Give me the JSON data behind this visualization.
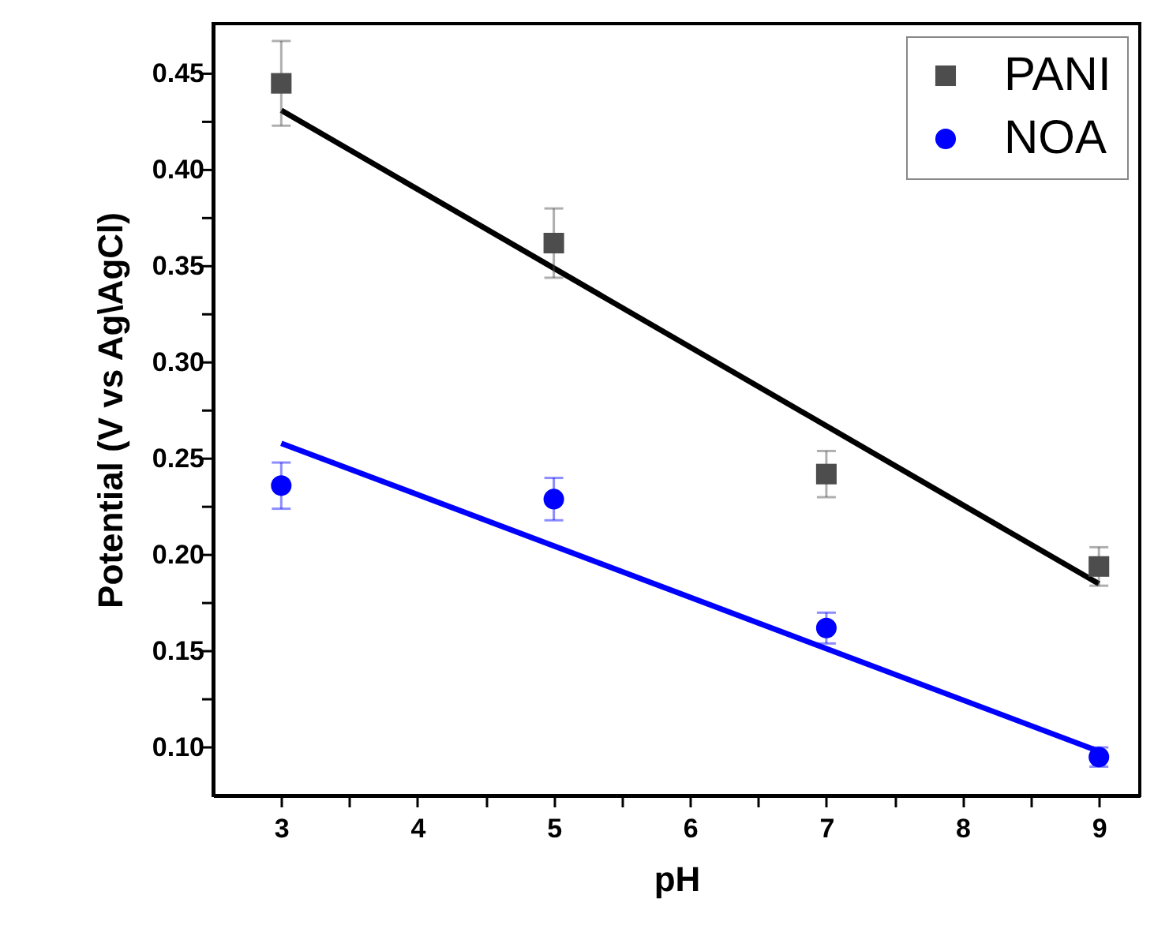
{
  "chart_data": {
    "type": "scatter",
    "xlabel": "pH",
    "ylabel": "Potential (V vs Ag\\AgCl)",
    "xlim": [
      2.5,
      9.3
    ],
    "ylim": [
      0.075,
      0.476
    ],
    "xticks": [
      3,
      {
        "value": 3.5,
        "label": null
      },
      4,
      {
        "value": 4.5,
        "label": null
      },
      5,
      {
        "value": 5.5,
        "label": null
      },
      6,
      {
        "value": 6.5,
        "label": null
      },
      7,
      {
        "value": 7.5,
        "label": null
      },
      8,
      {
        "value": 8.5,
        "label": null
      },
      9
    ],
    "yticks": [
      {
        "value": 0.1,
        "label": "0.10"
      },
      {
        "value": 0.125,
        "label": null
      },
      {
        "value": 0.15,
        "label": "0.15"
      },
      {
        "value": 0.175,
        "label": null
      },
      {
        "value": 0.2,
        "label": "0.20"
      },
      {
        "value": 0.225,
        "label": null
      },
      {
        "value": 0.25,
        "label": "0.25"
      },
      {
        "value": 0.275,
        "label": null
      },
      {
        "value": 0.3,
        "label": "0.30"
      },
      {
        "value": 0.325,
        "label": null
      },
      {
        "value": 0.35,
        "label": "0.35"
      },
      {
        "value": 0.375,
        "label": null
      },
      {
        "value": 0.4,
        "label": "0.40"
      },
      {
        "value": 0.425,
        "label": null
      },
      {
        "value": 0.45,
        "label": "0.45"
      }
    ],
    "grid": false,
    "legend": "top right",
    "series": [
      {
        "type": "scatter",
        "name": "PANI",
        "color": "#4d4d4d",
        "marker": "square",
        "x": [
          3,
          5,
          7,
          9
        ],
        "values": [
          0.445,
          0.362,
          0.242,
          0.194
        ],
        "errors": [
          0.022,
          0.018,
          0.012,
          0.01
        ]
      },
      {
        "type": "scatter",
        "name": "NOA",
        "color": "#0000ff",
        "marker": "circle",
        "x": [
          3,
          5,
          7,
          9
        ],
        "values": [
          0.236,
          0.229,
          0.162,
          0.095
        ],
        "errors": [
          0.012,
          0.011,
          0.008,
          0.005
        ]
      },
      {
        "type": "line",
        "color": "#000000",
        "x": [
          3,
          9
        ],
        "values": [
          0.431,
          0.185
        ]
      },
      {
        "type": "line",
        "color": "#0000ff",
        "x": [
          3,
          9
        ],
        "values": [
          0.258,
          0.098
        ]
      }
    ]
  }
}
